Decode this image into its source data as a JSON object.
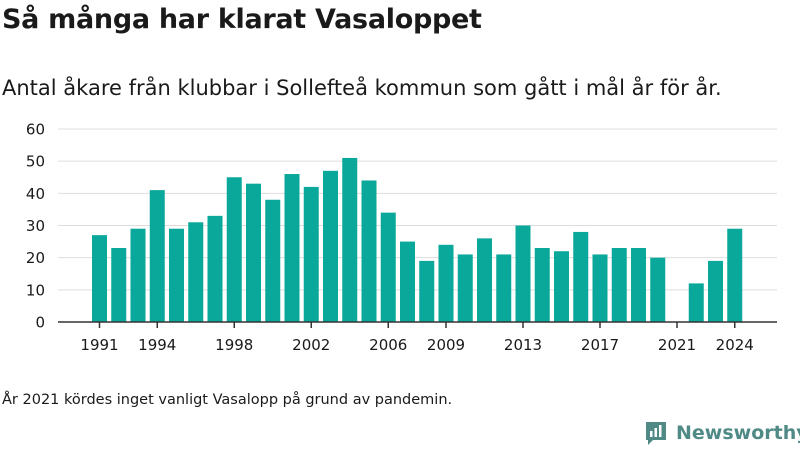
{
  "title": "Så många har klarat Vasaloppet",
  "subtitle": "Antal åkare från klubbar i Sollefteå kommun som gått i mål år för år.",
  "note": "År 2021 kördes inget vanligt Vasalopp på grund av pandemin.",
  "brand": "Newsworthy",
  "colors": {
    "bar": "#0aa89a",
    "grid": "#dddddd",
    "axis": "#333333",
    "text": "#1a1a1a",
    "brand": "#4f8a86"
  },
  "chart_data": {
    "type": "bar",
    "x": [
      1991,
      1992,
      1993,
      1994,
      1995,
      1996,
      1997,
      1998,
      1999,
      2000,
      2001,
      2002,
      2003,
      2004,
      2005,
      2006,
      2007,
      2008,
      2009,
      2010,
      2011,
      2012,
      2013,
      2014,
      2015,
      2016,
      2017,
      2018,
      2019,
      2020,
      2021,
      2022,
      2023,
      2024
    ],
    "values": [
      27,
      23,
      29,
      41,
      29,
      31,
      33,
      45,
      43,
      38,
      46,
      42,
      47,
      51,
      44,
      34,
      25,
      19,
      24,
      21,
      26,
      21,
      30,
      23,
      22,
      28,
      21,
      23,
      23,
      20,
      0,
      12,
      19,
      29
    ],
    "x_ticks": [
      1991,
      1994,
      1998,
      2002,
      2006,
      2009,
      2013,
      2017,
      2021,
      2024
    ],
    "y_ticks": [
      0,
      10,
      20,
      30,
      40,
      50,
      60
    ],
    "ylim": [
      0,
      60
    ],
    "grid": true
  }
}
